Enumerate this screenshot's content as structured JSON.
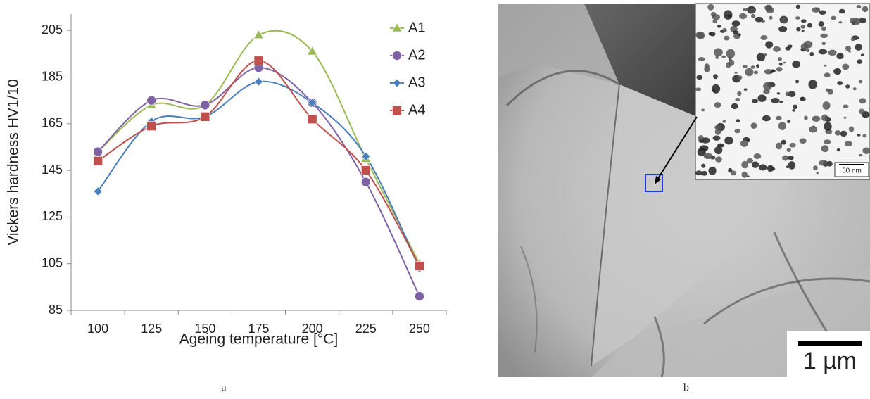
{
  "chart_data": {
    "type": "line",
    "ylabel": "Vickers hardness HV1/10",
    "xlabel": "Ageing temperature [°C]",
    "categories": [
      "100",
      "125",
      "150",
      "175",
      "200",
      "225",
      "250"
    ],
    "series": [
      {
        "name": "A1",
        "color": "#9bbb59",
        "marker": "triangle",
        "values": [
          153,
          173,
          173,
          203,
          196,
          150,
          105
        ]
      },
      {
        "name": "A2",
        "color": "#7f62a4",
        "marker": "circle",
        "values": [
          153,
          175,
          173,
          189,
          174,
          140,
          91
        ]
      },
      {
        "name": "A3",
        "color": "#4a7ebb",
        "marker": "diamond",
        "values": [
          136,
          166,
          168,
          183,
          174,
          151,
          103
        ]
      },
      {
        "name": "A4",
        "color": "#c0504d",
        "marker": "square",
        "values": [
          149,
          164,
          168,
          192,
          167,
          145,
          104
        ]
      }
    ],
    "ylim": [
      85,
      212
    ],
    "yticks": [
      85,
      105,
      125,
      145,
      165,
      185,
      205
    ],
    "grid": false,
    "legend": "top-right"
  },
  "panel_labels": [
    "a",
    "b"
  ],
  "micrograph": {
    "scale_bar": "1 µm",
    "inset_scale_bar": "50 nm"
  }
}
